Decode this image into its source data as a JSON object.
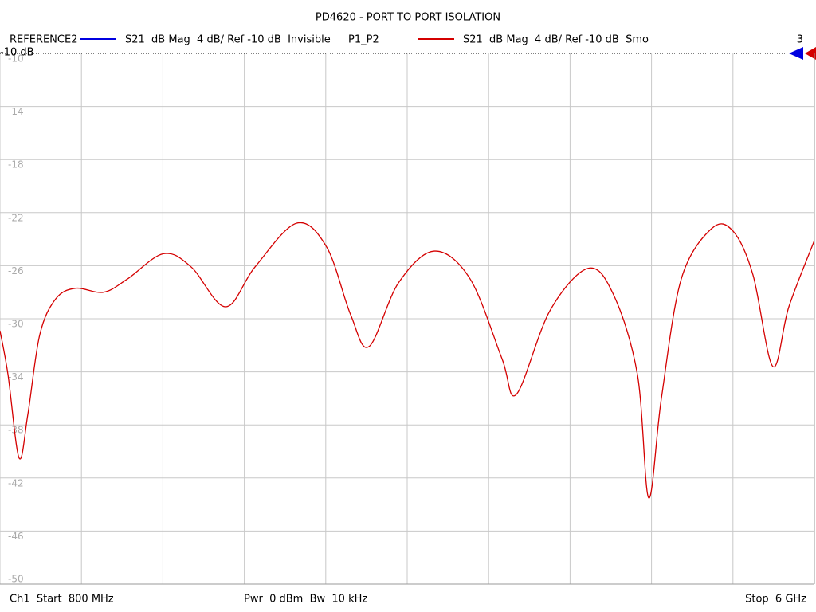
{
  "chart_data": {
    "type": "line",
    "title": "PD4620 - PORT TO PORT ISOLATION",
    "reference_trace": {
      "name": "REFERENCE2",
      "color": "#0000e0",
      "label": "S21  dB Mag  4 dB/ Ref -10 dB  Invisible"
    },
    "x": [
      800,
      851,
      922,
      978,
      1054,
      1156,
      1283,
      1461,
      1614,
      1843,
      2021,
      2240,
      2428,
      2693,
      2886,
      3039,
      3156,
      3344,
      3573,
      3802,
      4005,
      4097,
      4311,
      4555,
      4718,
      4870,
      4942,
      5023,
      5150,
      5344,
      5481,
      5608,
      5735,
      5837,
      6000
    ],
    "series": [
      {
        "name": "P1_P2",
        "color": "#d40000",
        "label": "S21  dB Mag  4 dB/ Ref -10 dB  Smo",
        "values": [
          -30.9,
          -34.2,
          -40.5,
          -37.2,
          -31.2,
          -28.5,
          -27.7,
          -28.0,
          -27.0,
          -25.1,
          -26.1,
          -29.1,
          -26.1,
          -22.8,
          -24.6,
          -29.7,
          -32.1,
          -27.3,
          -24.9,
          -27.0,
          -33.0,
          -35.7,
          -29.4,
          -26.2,
          -28.2,
          -34.2,
          -43.5,
          -36.0,
          -27.0,
          -23.2,
          -23.4,
          -26.7,
          -33.6,
          -29.1,
          -24.1
        ]
      }
    ],
    "xlim": [
      800,
      6000
    ],
    "xticks": [
      800,
      1320,
      1840,
      2360,
      2880,
      3400,
      3920,
      4440,
      4960,
      5480,
      6000
    ],
    "ylim": [
      -50,
      -10
    ],
    "yticks": [
      -10,
      -14,
      -18,
      -22,
      -26,
      -30,
      -34,
      -38,
      -42,
      -46,
      -50
    ],
    "grid": true,
    "reference_label": "-10 dB",
    "channel_number": "3",
    "footer": {
      "start": "Ch1  Start  800 MHz",
      "power": "Pwr  0 dBm  Bw  10 kHz",
      "stop": "Stop  6 GHz"
    }
  }
}
